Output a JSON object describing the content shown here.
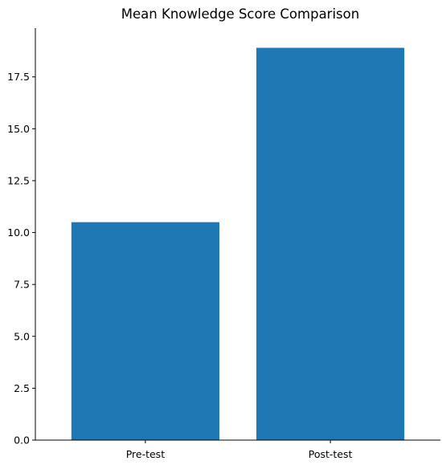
{
  "chart_data": {
    "type": "bar",
    "title": "Mean Knowledge Score Comparison",
    "xlabel": "",
    "ylabel": "",
    "categories": [
      "Pre-test",
      "Post-test"
    ],
    "values": [
      10.5,
      18.9
    ],
    "ylim": [
      0,
      19.85
    ],
    "yticks": [
      0.0,
      2.5,
      5.0,
      7.5,
      10.0,
      12.5,
      15.0,
      17.5
    ],
    "ytick_labels": [
      "0.0",
      "2.5",
      "5.0",
      "7.5",
      "10.0",
      "12.5",
      "15.0",
      "17.5"
    ],
    "bar_color": "#1f77b4",
    "grid": false,
    "legend": "none"
  }
}
